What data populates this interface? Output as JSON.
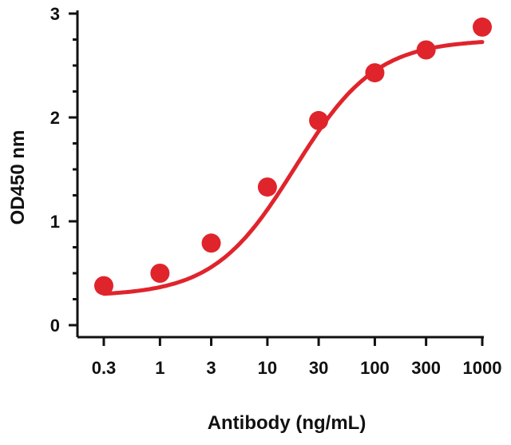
{
  "chart_data": {
    "type": "scatter",
    "title": "",
    "xlabel": "Antibody (ng/mL)",
    "ylabel": "OD450 nm",
    "x_scale": "log",
    "x_tick_labels": [
      "0.3",
      "1",
      "3",
      "10",
      "30",
      "100",
      "300",
      "1000"
    ],
    "x_ticks": [
      0.3,
      1,
      3,
      10,
      30,
      100,
      300,
      1000
    ],
    "y_tick_labels": [
      "0",
      "1",
      "2",
      "3"
    ],
    "y_ticks": [
      0,
      1,
      2,
      3
    ],
    "ylim": [
      0,
      3
    ],
    "xlim": [
      0.3,
      1000
    ],
    "grid": false,
    "legend": "none",
    "series": [
      {
        "x": [
          0.3,
          1,
          3,
          10,
          30,
          100,
          300,
          1000
        ],
        "y": [
          0.38,
          0.5,
          0.79,
          1.33,
          1.97,
          2.43,
          2.65,
          2.87
        ],
        "fit_curve": "4-parameter logistic",
        "color": "#e0242c"
      }
    ]
  }
}
